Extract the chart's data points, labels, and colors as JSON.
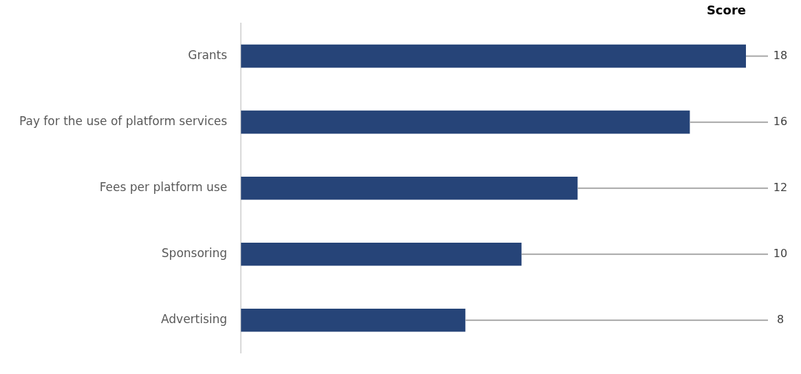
{
  "chart_data": {
    "type": "bar",
    "orientation": "horizontal",
    "title": "Score",
    "categories": [
      "Grants",
      "Pay for the use of platform services",
      "Fees per platform use",
      "Sponsoring",
      "Advertising"
    ],
    "values": [
      18,
      16,
      12,
      10,
      8
    ],
    "color": "#264478",
    "data_labels": true,
    "grid": false,
    "legend": false
  }
}
